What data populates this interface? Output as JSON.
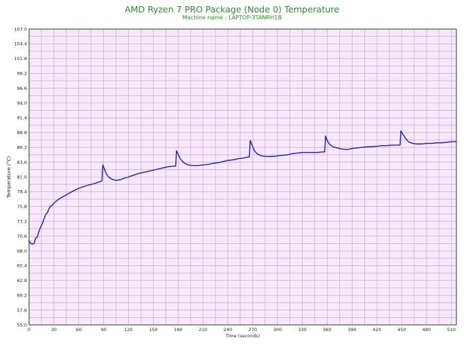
{
  "chart_data": {
    "type": "line",
    "title": "AMD Ryzen 7 PRO Package (Node 0) Temperature",
    "subtitle": "Machine name : LAPTOP-3TANRH1B",
    "xlabel": "Time (seconds)",
    "ylabel": "Temperature (°C)",
    "xlim": [
      0,
      516
    ],
    "ylim": [
      55.0,
      107.0
    ],
    "x_ticks": [
      0,
      30,
      60,
      90,
      120,
      150,
      180,
      210,
      240,
      270,
      300,
      330,
      360,
      390,
      420,
      450,
      480,
      510
    ],
    "y_ticks": [
      "55.0",
      "57.6",
      "60.2",
      "62.8",
      "65.4",
      "68.0",
      "70.6",
      "73.2",
      "75.8",
      "78.4",
      "81.0",
      "83.6",
      "86.2",
      "88.8",
      "91.4",
      "94.0",
      "96.6",
      "99.2",
      "101.8",
      "104.4",
      "107.0"
    ],
    "grid": true,
    "colors": {
      "background": "#f8e8fc",
      "grid": "#b89cc4",
      "line": "#1a1ab4",
      "title": "#2e8b2e"
    },
    "series": [
      {
        "values": [
          [
            0,
            69.8
          ],
          [
            2,
            69.3
          ],
          [
            4,
            69.2
          ],
          [
            6,
            69.3
          ],
          [
            8,
            70.3
          ],
          [
            10,
            70.5
          ],
          [
            12,
            71.5
          ],
          [
            14,
            72.2
          ],
          [
            16,
            72.8
          ],
          [
            18,
            73.6
          ],
          [
            20,
            74.4
          ],
          [
            22,
            74.7
          ],
          [
            24,
            75.4
          ],
          [
            26,
            75.9
          ],
          [
            28,
            76.0
          ],
          [
            30,
            76.4
          ],
          [
            34,
            76.9
          ],
          [
            38,
            77.3
          ],
          [
            42,
            77.6
          ],
          [
            48,
            78.1
          ],
          [
            54,
            78.6
          ],
          [
            60,
            79.0
          ],
          [
            66,
            79.3
          ],
          [
            72,
            79.6
          ],
          [
            78,
            79.8
          ],
          [
            84,
            80.1
          ],
          [
            88,
            80.3
          ],
          [
            89,
            83.1
          ],
          [
            91,
            82.4
          ],
          [
            93,
            81.6
          ],
          [
            96,
            81.0
          ],
          [
            100,
            80.6
          ],
          [
            105,
            80.4
          ],
          [
            110,
            80.5
          ],
          [
            115,
            80.8
          ],
          [
            120,
            81.0
          ],
          [
            126,
            81.3
          ],
          [
            132,
            81.6
          ],
          [
            138,
            81.8
          ],
          [
            144,
            82.0
          ],
          [
            150,
            82.2
          ],
          [
            156,
            82.4
          ],
          [
            162,
            82.6
          ],
          [
            168,
            82.8
          ],
          [
            174,
            82.9
          ],
          [
            177,
            82.9
          ],
          [
            178,
            85.6
          ],
          [
            180,
            85.0
          ],
          [
            183,
            84.1
          ],
          [
            187,
            83.5
          ],
          [
            192,
            83.1
          ],
          [
            198,
            83.0
          ],
          [
            204,
            83.0
          ],
          [
            210,
            83.1
          ],
          [
            216,
            83.2
          ],
          [
            222,
            83.4
          ],
          [
            228,
            83.5
          ],
          [
            234,
            83.7
          ],
          [
            240,
            83.9
          ],
          [
            246,
            84.0
          ],
          [
            252,
            84.2
          ],
          [
            258,
            84.3
          ],
          [
            264,
            84.5
          ],
          [
            266,
            84.5
          ],
          [
            267,
            87.4
          ],
          [
            269,
            86.7
          ],
          [
            272,
            85.6
          ],
          [
            276,
            85.0
          ],
          [
            281,
            84.7
          ],
          [
            287,
            84.6
          ],
          [
            294,
            84.6
          ],
          [
            300,
            84.7
          ],
          [
            306,
            84.8
          ],
          [
            312,
            84.9
          ],
          [
            318,
            85.1
          ],
          [
            324,
            85.2
          ],
          [
            330,
            85.3
          ],
          [
            336,
            85.3
          ],
          [
            342,
            85.3
          ],
          [
            348,
            85.3
          ],
          [
            354,
            85.4
          ],
          [
            357,
            85.4
          ],
          [
            358,
            88.2
          ],
          [
            360,
            87.4
          ],
          [
            363,
            86.7
          ],
          [
            367,
            86.3
          ],
          [
            372,
            86.1
          ],
          [
            378,
            85.9
          ],
          [
            384,
            85.8
          ],
          [
            390,
            86.0
          ],
          [
            396,
            86.1
          ],
          [
            402,
            86.2
          ],
          [
            408,
            86.3
          ],
          [
            414,
            86.3
          ],
          [
            420,
            86.4
          ],
          [
            426,
            86.5
          ],
          [
            432,
            86.5
          ],
          [
            438,
            86.6
          ],
          [
            444,
            86.6
          ],
          [
            448,
            86.6
          ],
          [
            449,
            89.1
          ],
          [
            451,
            88.6
          ],
          [
            454,
            87.9
          ],
          [
            458,
            87.2
          ],
          [
            463,
            86.9
          ],
          [
            468,
            86.8
          ],
          [
            474,
            86.8
          ],
          [
            480,
            86.9
          ],
          [
            486,
            86.9
          ],
          [
            492,
            87.0
          ],
          [
            498,
            87.0
          ],
          [
            504,
            87.1
          ],
          [
            510,
            87.2
          ],
          [
            516,
            87.2
          ]
        ]
      }
    ]
  }
}
